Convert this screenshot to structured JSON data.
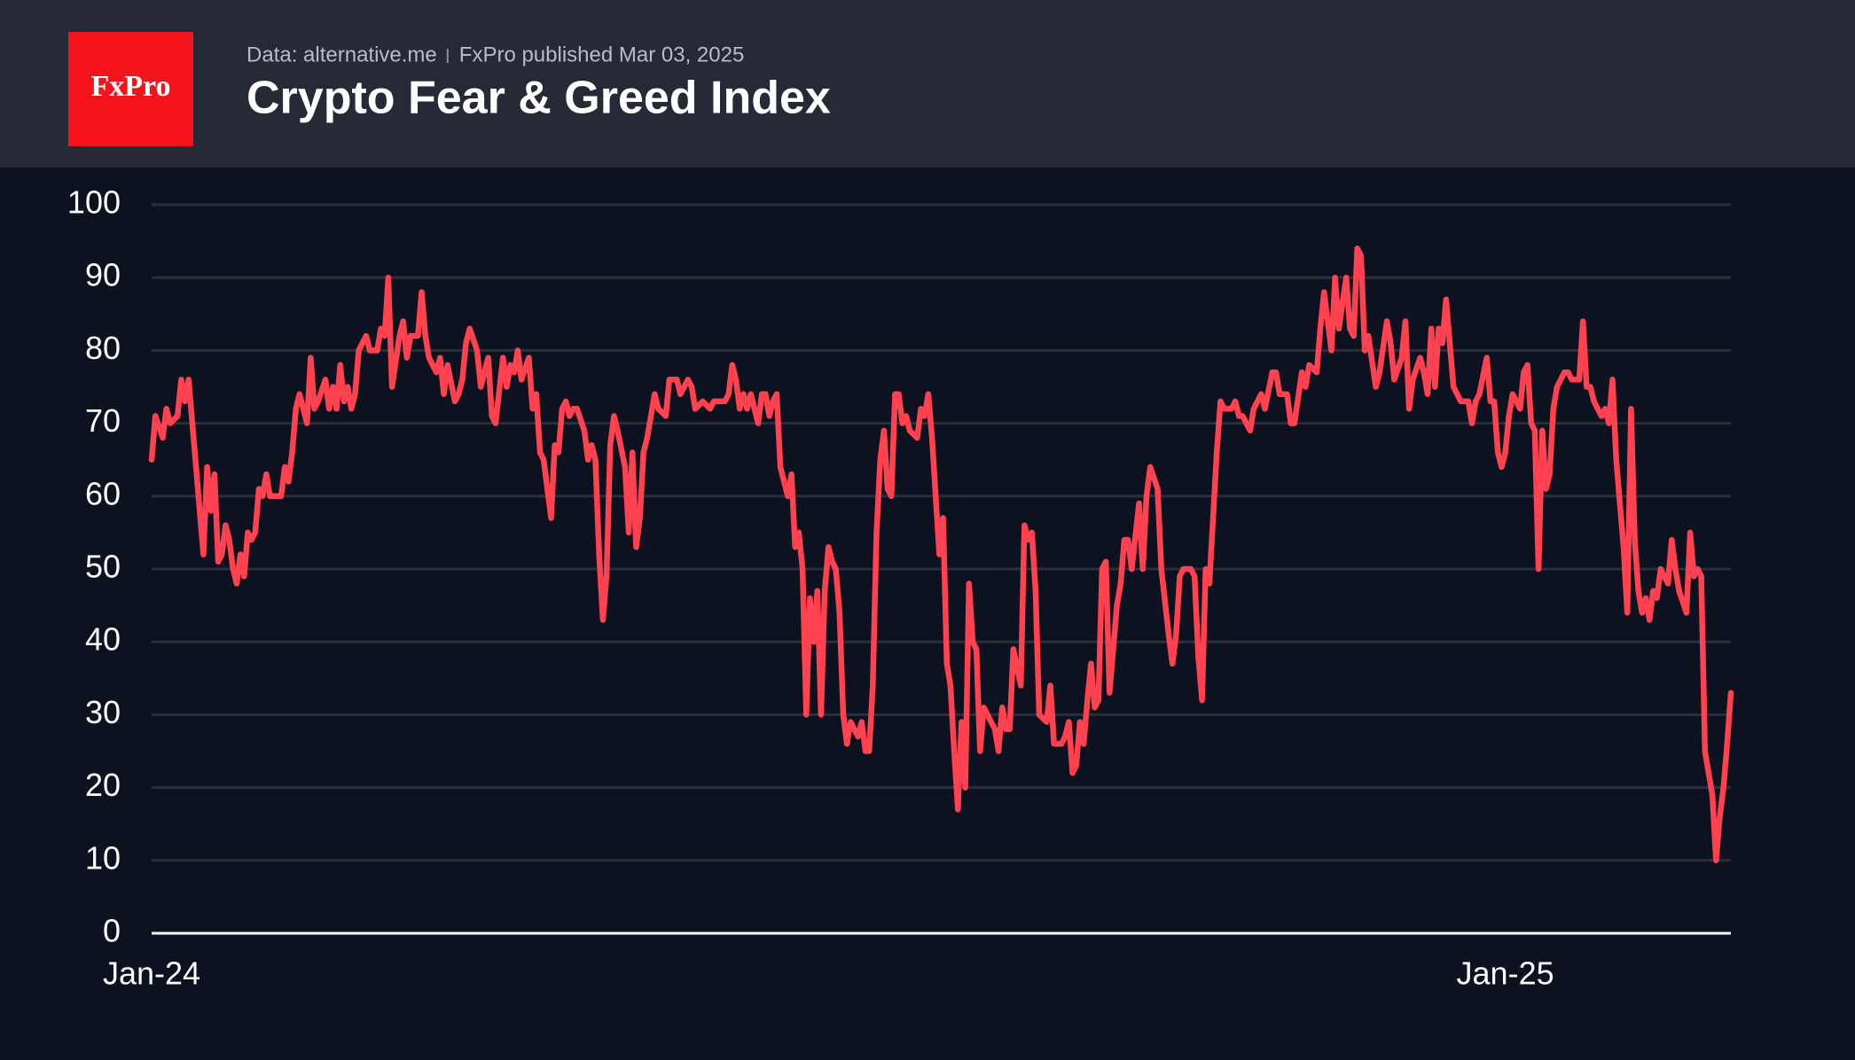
{
  "header": {
    "logo": "FxPro",
    "source": "Data: alternative.me",
    "published": "FxPro published Mar 03, 2025"
  },
  "chart_data": {
    "type": "line",
    "title": "Crypto Fear & Greed Index",
    "color": "#ff4150",
    "xlim": [
      0,
      427
    ],
    "xticks": [
      {
        "value": 0,
        "label": "Jan-24"
      },
      {
        "value": 366,
        "label": "Jan-25"
      }
    ],
    "ylim": [
      0,
      100
    ],
    "yticks": [
      0,
      10,
      20,
      30,
      40,
      50,
      60,
      70,
      80,
      90,
      100
    ],
    "grid": true,
    "x": [
      0,
      1,
      3,
      4,
      5,
      7,
      8,
      9,
      10,
      12,
      13,
      14,
      15,
      16,
      17,
      18,
      19,
      20,
      21,
      22,
      23,
      24,
      25,
      26,
      27,
      28,
      29,
      30,
      31,
      32,
      35,
      36,
      37,
      38,
      39,
      40,
      42,
      43,
      44,
      45,
      47,
      48,
      49,
      50,
      51,
      52,
      53,
      54,
      55,
      56,
      58,
      59,
      61,
      62,
      63,
      64,
      65,
      67,
      68,
      69,
      70,
      72,
      73,
      74,
      75,
      77,
      78,
      79,
      80,
      82,
      83,
      84,
      85,
      86,
      88,
      89,
      90,
      91,
      92,
      93,
      95,
      96,
      97,
      98,
      99,
      100,
      102,
      103,
      104,
      105,
      106,
      108,
      109,
      110,
      111,
      112,
      113,
      114,
      115,
      117,
      118,
      119,
      120,
      121,
      122,
      123,
      124,
      125,
      126,
      128,
      129,
      130,
      131,
      132,
      133,
      134,
      136,
      137,
      139,
      140,
      142,
      143,
      145,
      146,
      147,
      149,
      151,
      152,
      155,
      156,
      157,
      158,
      159,
      160,
      161,
      162,
      164,
      165,
      166,
      167,
      168,
      169,
      170,
      172,
      173,
      174,
      175,
      176,
      177,
      178,
      179,
      180,
      181,
      182,
      183,
      184,
      185,
      186,
      187,
      188,
      189,
      190,
      191,
      192,
      193,
      194,
      195,
      196,
      197,
      198,
      199,
      200,
      201,
      202,
      203,
      204,
      205,
      207,
      208,
      209,
      210,
      211,
      212,
      213,
      214,
      215,
      216,
      217,
      218,
      219,
      220,
      221,
      222,
      223,
      224,
      225,
      226,
      228,
      229,
      230,
      231,
      232,
      233,
      235,
      236,
      237,
      238,
      239,
      240,
      242,
      243,
      244,
      246,
      247,
      248,
      249,
      250,
      251,
      252,
      253,
      254,
      255,
      256,
      257,
      258,
      259,
      261,
      262,
      263,
      264,
      265,
      267,
      268,
      269,
      270,
      272,
      273,
      275,
      276,
      277,
      278,
      279,
      281,
      282,
      283,
      284,
      285,
      286,
      288,
      289,
      290,
      292,
      293,
      294,
      295,
      297,
      298,
      300,
      301,
      303,
      304,
      305,
      307,
      308,
      309,
      311,
      312,
      313,
      315,
      316,
      317,
      319,
      320,
      321,
      323,
      324,
      325,
      326,
      327,
      328,
      329,
      331,
      332,
      334,
      335,
      336,
      338,
      339,
      340,
      341,
      343,
      344,
      345,
      346,
      347,
      348,
      349,
      350,
      352,
      353,
      354,
      356,
      357,
      358,
      359,
      361,
      362,
      363,
      364,
      365,
      366,
      367,
      368,
      370,
      371,
      372,
      373,
      374,
      375,
      376,
      377,
      378,
      379,
      380,
      382,
      383,
      384,
      386,
      387,
      388,
      389,
      390,
      392,
      393,
      394,
      395,
      396,
      398,
      399,
      400,
      401,
      402,
      403,
      404,
      405,
      406,
      407,
      408,
      410,
      411,
      412,
      413,
      415,
      416,
      417,
      418,
      419,
      420,
      422,
      423,
      424,
      425,
      426,
      427
    ],
    "values": [
      65,
      71,
      68,
      72,
      70,
      71,
      76,
      73,
      76,
      64,
      58,
      52,
      64,
      58,
      63,
      51,
      52,
      56,
      54,
      50,
      48,
      52,
      49,
      55,
      54,
      55,
      61,
      60,
      63,
      60,
      60,
      64,
      62,
      66,
      72,
      74,
      70,
      79,
      72,
      73,
      76,
      72,
      75,
      72,
      78,
      73,
      75,
      72,
      74,
      80,
      82,
      80,
      80,
      83,
      82,
      90,
      75,
      82,
      84,
      79,
      82,
      82,
      88,
      82,
      79,
      77,
      79,
      74,
      78,
      73,
      74,
      76,
      81,
      83,
      80,
      75,
      77,
      79,
      71,
      70,
      79,
      75,
      78,
      77,
      80,
      76,
      79,
      72,
      74,
      66,
      65,
      57,
      67,
      66,
      72,
      73,
      71,
      72,
      72,
      69,
      65,
      67,
      65,
      52,
      43,
      49,
      67,
      71,
      69,
      64,
      55,
      66,
      53,
      57,
      66,
      68,
      74,
      72,
      71,
      76,
      76,
      74,
      76,
      75,
      72,
      73,
      72,
      73,
      73,
      74,
      78,
      76,
      72,
      74,
      72,
      74,
      70,
      74,
      74,
      71,
      73,
      74,
      64,
      60,
      63,
      53,
      55,
      50,
      30,
      46,
      40,
      47,
      30,
      47,
      53,
      51,
      50,
      44,
      30,
      26,
      29,
      28,
      27,
      29,
      25,
      25,
      34,
      55,
      65,
      69,
      61,
      60,
      74,
      74,
      70,
      71,
      69,
      68,
      72,
      71,
      74,
      68,
      60,
      52,
      57,
      37,
      34,
      25,
      17,
      29,
      20,
      48,
      40,
      39,
      25,
      31,
      30,
      28,
      25,
      31,
      28,
      28,
      39,
      34,
      56,
      54,
      55,
      47,
      30,
      29,
      34,
      26,
      26,
      27,
      29,
      22,
      23,
      29,
      26,
      32,
      37,
      31,
      32,
      50,
      51,
      33,
      45,
      48,
      54,
      54,
      50,
      59,
      50,
      60,
      64,
      61,
      50,
      41,
      37,
      41,
      49,
      50,
      50,
      49,
      38,
      32,
      50,
      48,
      66,
      73,
      72,
      72,
      73,
      71,
      71,
      69,
      72,
      74,
      72,
      77,
      77,
      74,
      74,
      70,
      70,
      77,
      75,
      78,
      77,
      83,
      88,
      80,
      90,
      83,
      90,
      83,
      82,
      94,
      93,
      80,
      82,
      75,
      77,
      84,
      81,
      76,
      79,
      84,
      72,
      76,
      79,
      77,
      74,
      83,
      75,
      83,
      81,
      87,
      75,
      74,
      73,
      73,
      70,
      73,
      74,
      79,
      73,
      73,
      66,
      64,
      66,
      71,
      74,
      72,
      77,
      78,
      70,
      69,
      50,
      69,
      61,
      63,
      72,
      75,
      77,
      77,
      76,
      76,
      84,
      75,
      75,
      73,
      71,
      72,
      70,
      76,
      65,
      53,
      44,
      72,
      54,
      47,
      44,
      46,
      43,
      47,
      46,
      50,
      48,
      54,
      50,
      47,
      44,
      55,
      49,
      50,
      49,
      25,
      19,
      10,
      16,
      20,
      26,
      33
    ]
  }
}
